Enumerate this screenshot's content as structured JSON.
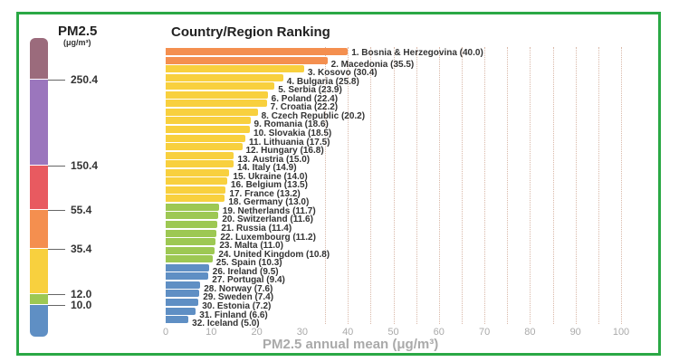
{
  "chart_data": {
    "type": "bar",
    "orientation": "horizontal",
    "title": "Country/Region Ranking",
    "xlabel": "PM2.5 annual mean (μg/m³)",
    "xlim": [
      0,
      100
    ],
    "xticks": [
      0,
      10,
      20,
      30,
      40,
      50,
      60,
      70,
      80,
      90,
      100
    ],
    "categories": [
      "Bosnia & Herzegovina",
      "Macedonia",
      "Kosovo",
      "Bulgaria",
      "Serbia",
      "Poland",
      "Croatia",
      "Czech Republic",
      "Romania",
      "Slovakia",
      "Lithuania",
      "Hungary",
      "Austria",
      "Italy",
      "Ukraine",
      "Belgium",
      "France",
      "Germany",
      "Netherlands",
      "Switzerland",
      "Russia",
      "Luxembourg",
      "Malta",
      "United Kingdom",
      "Spain",
      "Ireland",
      "Portugal",
      "Norway",
      "Sweden",
      "Estonia",
      "Finland",
      "Iceland"
    ],
    "values": [
      40.0,
      35.5,
      30.4,
      25.8,
      23.9,
      22.4,
      22.2,
      20.2,
      18.6,
      18.5,
      17.5,
      16.8,
      15.0,
      14.9,
      14.0,
      13.5,
      13.2,
      13.0,
      11.7,
      11.6,
      11.4,
      11.2,
      11.0,
      10.8,
      10.3,
      9.5,
      9.4,
      7.6,
      7.4,
      7.2,
      6.6,
      5.0
    ],
    "labels": [
      "1. Bosnia & Herzegovina (40.0)",
      "2. Macedonia (35.5)",
      "3. Kosovo (30.4)",
      "4. Bulgaria (25.8)",
      "5. Serbia (23.9)",
      "6. Poland (22.4)",
      "7. Croatia (22.2)",
      "8. Czech Republic (20.2)",
      "9. Romania (18.6)",
      "10. Slovakia (18.5)",
      "11. Lithuania (17.5)",
      "12. Hungary (16.8)",
      "13. Austria (15.0)",
      "14. Italy (14.9)",
      "15. Ukraine (14.0)",
      "16. Belgium (13.5)",
      "17. France (13.2)",
      "18. Germany (13.0)",
      "19. Netherlands (11.7)",
      "20. Switzerland (11.6)",
      "21. Russia (11.4)",
      "22. Luxembourg (11.2)",
      "23. Malta (11.0)",
      "24. United Kingdom (10.8)",
      "25. Spain (10.3)",
      "26. Ireland (9.5)",
      "27. Portugal (9.4)",
      "28. Norway (7.6)",
      "29. Sweden (7.4)",
      "30. Estonia (7.2)",
      "31. Finland (6.6)",
      "32. Iceland (5.0)"
    ]
  },
  "legend": {
    "title": "PM2.5",
    "unit": "(μg/m³)",
    "breakpoints": [
      "250.4",
      "150.4",
      "55.4",
      "35.4",
      "12.0",
      "10.0"
    ],
    "colors": [
      "#9b6b7c",
      "#9b76bd",
      "#e85a60",
      "#f48f4f",
      "#f8d03e",
      "#9dc853",
      "#5f8fc4"
    ]
  },
  "colors": {
    "orange": "#f48f4f",
    "yellow": "#f8d03e",
    "green": "#9dc853",
    "blue": "#5f8fc4",
    "frame": "#2aa845"
  }
}
